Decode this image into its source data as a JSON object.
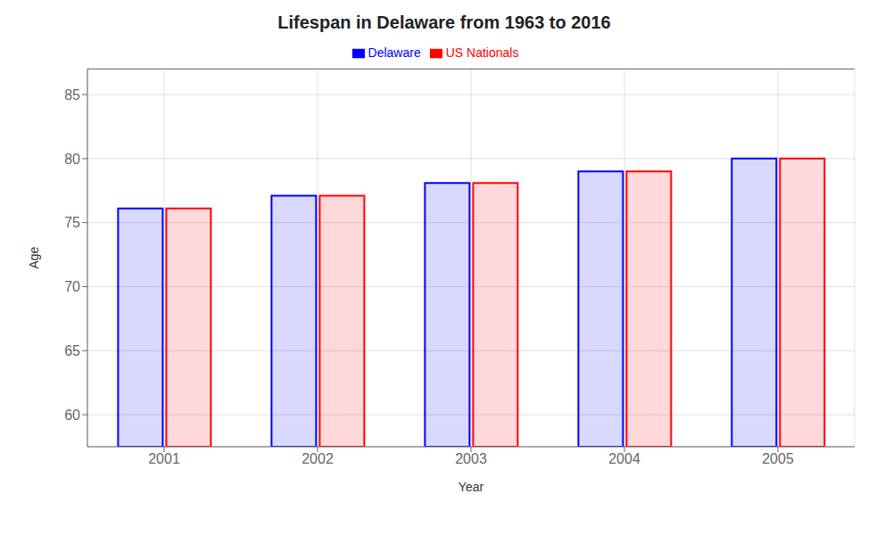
{
  "chart_data": {
    "type": "bar",
    "title": "Lifespan in Delaware from 1963 to 2016",
    "x_label": "Year",
    "y_label": "Age",
    "categories": [
      "2001",
      "2002",
      "2003",
      "2004",
      "2005"
    ],
    "series": [
      {
        "name": "Delaware",
        "color": "#0000ff",
        "values": [
          76.1,
          77.1,
          78.1,
          79.0,
          80.0
        ]
      },
      {
        "name": "US Nationals",
        "color": "#ff0000",
        "values": [
          76.1,
          77.1,
          78.1,
          79.0,
          80.0
        ]
      }
    ],
    "ylim": [
      57.5,
      87
    ],
    "yticks": [
      60,
      65,
      70,
      75,
      80,
      85
    ],
    "grid": true,
    "legend": "top"
  }
}
